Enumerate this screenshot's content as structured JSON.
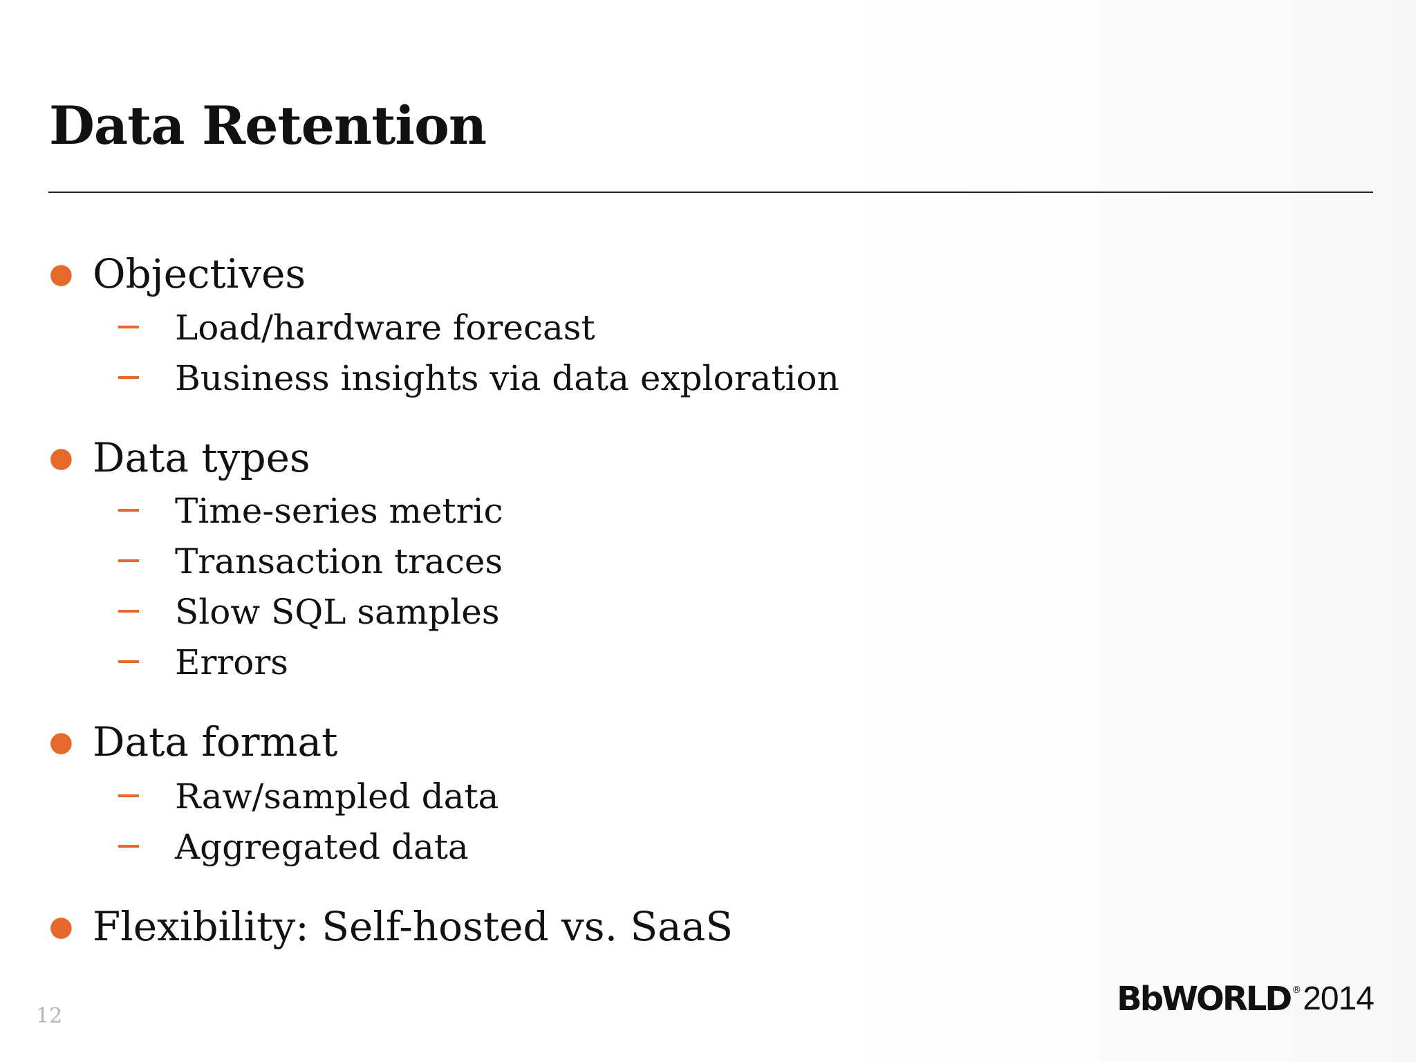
{
  "slide": {
    "title": "Data Retention",
    "page_number": "12",
    "logo": {
      "brand": "BbWORLD",
      "registered_mark": "®",
      "year": "2014"
    },
    "bullets": [
      {
        "text": "Objectives",
        "subitems": [
          "Load/hardware forecast",
          "Business insights via data exploration"
        ]
      },
      {
        "text": "Data types",
        "subitems": [
          "Time-series metric",
          "Transaction traces",
          "Slow SQL samples",
          "Errors"
        ]
      },
      {
        "text": "Data format",
        "subitems": [
          "Raw/sampled data",
          "Aggregated data"
        ]
      },
      {
        "text": "Flexibility: Self-hosted vs. SaaS",
        "subitems": []
      }
    ],
    "colors": {
      "accent": "#e8682c",
      "text": "#111111",
      "page_number": "#b5b5b5"
    }
  }
}
